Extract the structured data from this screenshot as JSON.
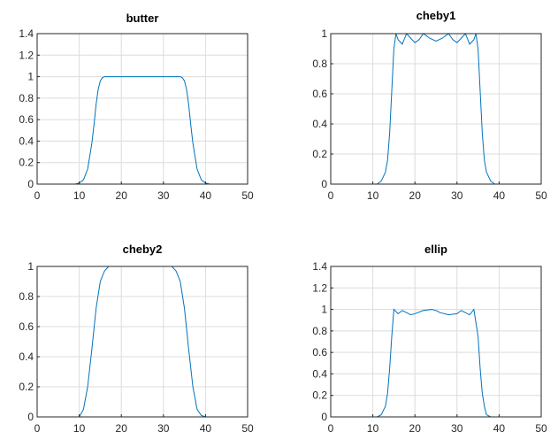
{
  "chart_data": [
    {
      "type": "line",
      "title": "butter",
      "xlim": [
        0,
        50
      ],
      "ylim": [
        0,
        1.4
      ],
      "xticks": [
        0,
        10,
        20,
        30,
        40,
        50
      ],
      "yticks": [
        0,
        0.2,
        0.4,
        0.6,
        0.8,
        1,
        1.2,
        1.4
      ],
      "xtick_labels": [
        "0",
        "10",
        "20",
        "30",
        "40",
        "50"
      ],
      "ytick_labels": [
        "0",
        "0.2",
        "0.4",
        "0.6",
        "0.8",
        "1",
        "1.2",
        "1.4"
      ],
      "grid": true,
      "color": "#0072bd",
      "series": [
        {
          "x": [
            0,
            9,
            10,
            11,
            12,
            13,
            13.5,
            14,
            14.5,
            15,
            15.5,
            16,
            18,
            20,
            25,
            30,
            32,
            34,
            34.5,
            35,
            35.5,
            36,
            36.5,
            37,
            38,
            39,
            40,
            41,
            50
          ],
          "y": [
            0,
            0,
            0.01,
            0.04,
            0.14,
            0.38,
            0.55,
            0.74,
            0.88,
            0.96,
            0.99,
            1.0,
            1.0,
            1.0,
            1.0,
            1.0,
            1.0,
            1.0,
            0.99,
            0.96,
            0.88,
            0.74,
            0.55,
            0.38,
            0.14,
            0.04,
            0.01,
            0,
            0
          ]
        }
      ]
    },
    {
      "type": "line",
      "title": "cheby1",
      "xlim": [
        0,
        50
      ],
      "ylim": [
        0,
        1
      ],
      "xticks": [
        0,
        10,
        20,
        30,
        40,
        50
      ],
      "yticks": [
        0,
        0.2,
        0.4,
        0.6,
        0.8,
        1
      ],
      "xtick_labels": [
        "0",
        "10",
        "20",
        "30",
        "40",
        "50"
      ],
      "ytick_labels": [
        "0",
        "0.2",
        "0.4",
        "0.6",
        "0.8",
        "1"
      ],
      "grid": true,
      "color": "#0072bd",
      "series": [
        {
          "x": [
            0,
            11,
            12,
            13,
            13.5,
            14,
            14.5,
            15,
            15.5,
            16,
            17,
            18,
            19,
            20,
            21,
            22,
            23.5,
            25,
            26.5,
            28,
            29,
            30,
            31,
            32,
            33,
            34,
            34.5,
            35,
            35.5,
            36,
            36.5,
            37,
            38,
            39,
            50
          ],
          "y": [
            0,
            0,
            0.02,
            0.08,
            0.16,
            0.34,
            0.62,
            0.9,
            1.0,
            0.96,
            0.93,
            1.0,
            0.97,
            0.94,
            0.96,
            1.0,
            0.97,
            0.95,
            0.97,
            1.0,
            0.96,
            0.94,
            0.97,
            1.0,
            0.93,
            0.96,
            1.0,
            0.9,
            0.62,
            0.34,
            0.16,
            0.08,
            0.02,
            0,
            0
          ]
        }
      ]
    },
    {
      "type": "line",
      "title": "cheby2",
      "xlim": [
        0,
        50
      ],
      "ylim": [
        0,
        1
      ],
      "xticks": [
        0,
        10,
        20,
        30,
        40,
        50
      ],
      "yticks": [
        0,
        0.2,
        0.4,
        0.6,
        0.8,
        1
      ],
      "xtick_labels": [
        "0",
        "10",
        "20",
        "30",
        "40",
        "50"
      ],
      "ytick_labels": [
        "0",
        "0.2",
        "0.4",
        "0.6",
        "0.8",
        "1"
      ],
      "grid": true,
      "color": "#0072bd",
      "series": [
        {
          "x": [
            0,
            10,
            11,
            12,
            13,
            14,
            15,
            16,
            17,
            18,
            20,
            25,
            30,
            32,
            33,
            34,
            35,
            36,
            37,
            38,
            39,
            40,
            50
          ],
          "y": [
            0,
            0,
            0.05,
            0.2,
            0.45,
            0.72,
            0.9,
            0.97,
            1.0,
            1.0,
            1.0,
            1.0,
            1.0,
            1.0,
            0.97,
            0.9,
            0.72,
            0.45,
            0.2,
            0.05,
            0.01,
            0,
            0
          ]
        }
      ]
    },
    {
      "type": "line",
      "title": "ellip",
      "xlim": [
        0,
        50
      ],
      "ylim": [
        0,
        1.4
      ],
      "xticks": [
        0,
        10,
        20,
        30,
        40,
        50
      ],
      "yticks": [
        0,
        0.2,
        0.4,
        0.6,
        0.8,
        1,
        1.2,
        1.4
      ],
      "xtick_labels": [
        "0",
        "10",
        "20",
        "30",
        "40",
        "50"
      ],
      "ytick_labels": [
        "0",
        "0.2",
        "0.4",
        "0.6",
        "0.8",
        "1",
        "1.2",
        "1.4"
      ],
      "grid": true,
      "color": "#0072bd",
      "series": [
        {
          "x": [
            0,
            11,
            12,
            13,
            13.5,
            14,
            14.5,
            15,
            16,
            17,
            18,
            19,
            20,
            22,
            24,
            25,
            26,
            28,
            30,
            31,
            32,
            33,
            34,
            35,
            35.5,
            36,
            36.5,
            37,
            38,
            50
          ],
          "y": [
            0,
            0,
            0.02,
            0.1,
            0.22,
            0.45,
            0.75,
            1.0,
            0.96,
            0.99,
            0.97,
            0.95,
            0.96,
            0.99,
            1.0,
            0.99,
            0.97,
            0.95,
            0.96,
            0.99,
            0.97,
            0.95,
            1.0,
            0.75,
            0.45,
            0.22,
            0.1,
            0.02,
            0,
            0
          ]
        }
      ]
    }
  ]
}
